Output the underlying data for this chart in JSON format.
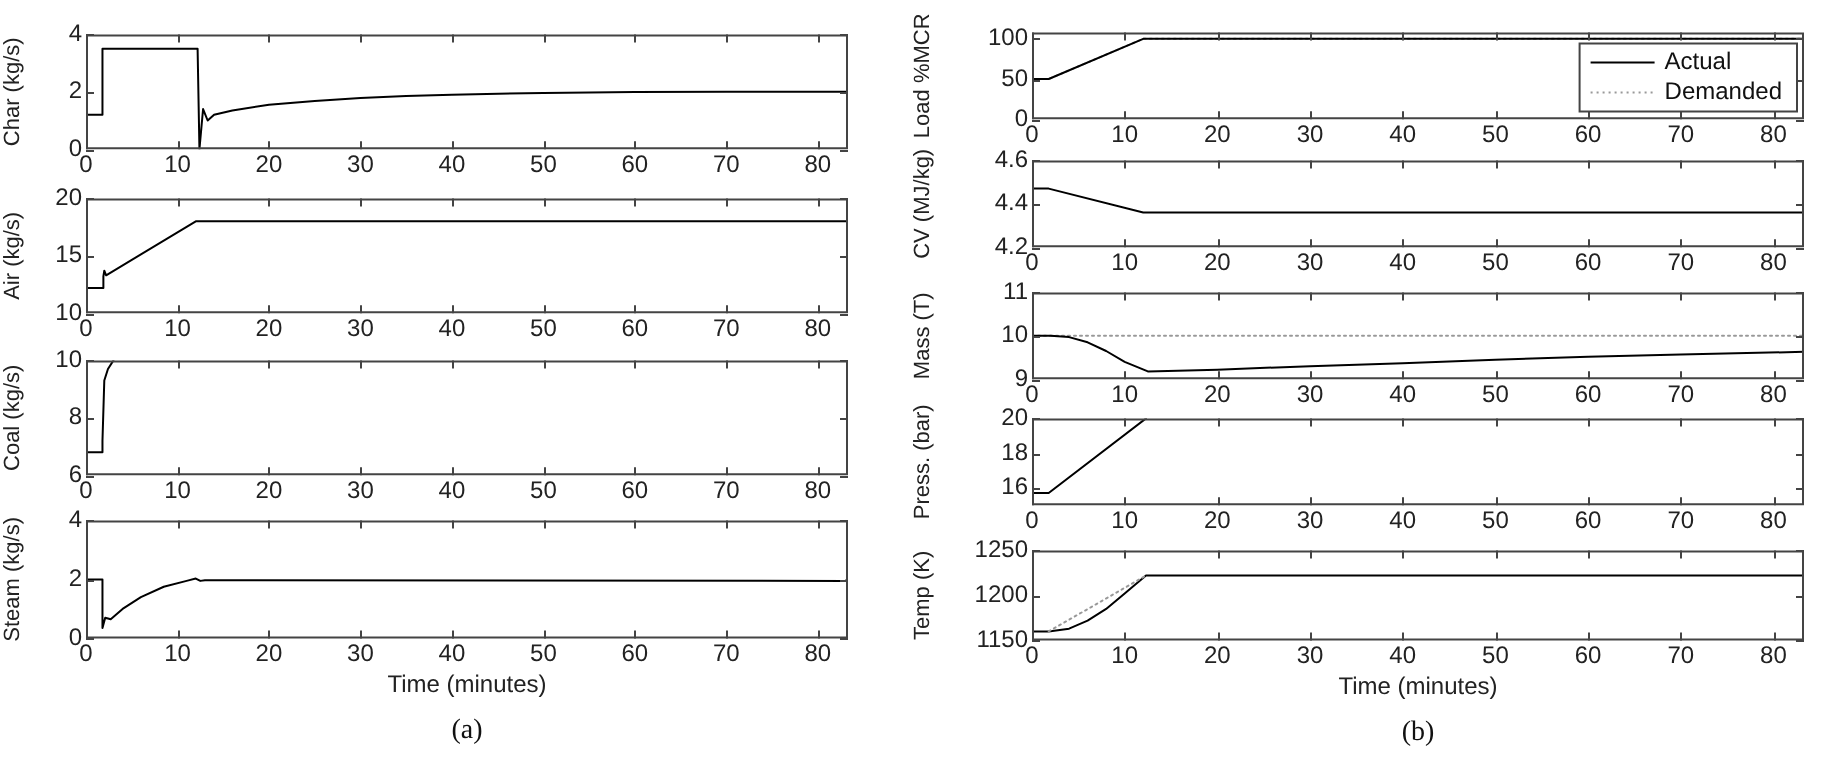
{
  "chart_data": [
    {
      "type": "line",
      "ylabel": "Char (kg/s)",
      "xlim": [
        0,
        83.3
      ],
      "xticks": [
        0,
        10,
        20,
        30,
        40,
        50,
        60,
        70,
        80
      ],
      "ylim": [
        0,
        4
      ],
      "yticks": [
        0,
        2,
        4
      ],
      "marker": "none",
      "line_style": "solid",
      "series": [
        {
          "color": "#000000",
          "x": [
            0,
            1.8,
            1.8,
            12.2,
            12.4,
            12.8,
            13.3,
            14,
            16,
            20,
            25,
            30,
            35,
            40,
            50,
            60,
            70,
            83.3
          ],
          "values": [
            1.2,
            1.2,
            3.5,
            3.5,
            0,
            1.4,
            1.0,
            1.2,
            1.35,
            1.55,
            1.68,
            1.78,
            1.85,
            1.9,
            1.96,
            1.99,
            2.0,
            2.0
          ]
        }
      ]
    },
    {
      "type": "line",
      "ylabel": "Air (kg/s)",
      "xlim": [
        0,
        83.3
      ],
      "xticks": [
        0,
        10,
        20,
        30,
        40,
        50,
        60,
        70,
        80
      ],
      "ylim": [
        10,
        20
      ],
      "yticks": [
        10,
        15,
        20
      ],
      "marker": "none",
      "line_style": "solid",
      "series": [
        {
          "color": "#000000",
          "x": [
            0,
            1.8,
            1.9,
            2.0,
            2.2,
            12,
            83.3
          ],
          "values": [
            12.2,
            12.2,
            13.2,
            13.7,
            13.3,
            18,
            18
          ]
        }
      ]
    },
    {
      "type": "line",
      "ylabel": "Coal (kg/s)",
      "xlim": [
        0,
        83.3
      ],
      "xticks": [
        0,
        10,
        20,
        30,
        40,
        50,
        60,
        70,
        80
      ],
      "ylim": [
        6,
        10
      ],
      "yticks": [
        6,
        8,
        10
      ],
      "marker": "none",
      "line_style": "solid",
      "series": [
        {
          "color": "#000000",
          "x": [
            0,
            1.8,
            1.8,
            2.0,
            2.4,
            3.0
          ],
          "values": [
            6.8,
            6.8,
            7.2,
            9.3,
            9.7,
            10
          ]
        }
      ]
    },
    {
      "type": "line",
      "ylabel": "Steam (kg/s)",
      "xlabel": "Time (minutes)",
      "annotations": [
        "(a)"
      ],
      "xlim": [
        0,
        83.3
      ],
      "xticks": [
        0,
        10,
        20,
        30,
        40,
        50,
        60,
        70,
        80
      ],
      "ylim": [
        0,
        4
      ],
      "yticks": [
        0,
        2,
        4
      ],
      "marker": "none",
      "line_style": "solid",
      "series": [
        {
          "color": "#000000",
          "x": [
            0,
            1.8,
            1.8,
            2.1,
            2.7,
            4,
            6,
            8.5,
            11,
            12,
            12.5,
            13,
            83,
            83.3
          ],
          "values": [
            2.0,
            2.0,
            0.35,
            0.7,
            0.65,
            1.0,
            1.4,
            1.75,
            1.95,
            2.03,
            1.95,
            1.97,
            1.95,
            2.0
          ]
        }
      ]
    },
    {
      "type": "line",
      "ylabel": "Load %MCR",
      "legend": "top right",
      "xlim": [
        0,
        83.3
      ],
      "xticks": [
        0,
        10,
        20,
        30,
        40,
        50,
        60,
        70,
        80
      ],
      "ylim": [
        0,
        108
      ],
      "yticks": [
        0,
        50,
        100
      ],
      "marker": "none",
      "series": [
        {
          "name": "Actual",
          "color": "#000000",
          "line_style": "solid",
          "x": [
            0,
            1.8,
            12,
            83.3
          ],
          "values": [
            50,
            50,
            100,
            100
          ]
        },
        {
          "name": "Demanded",
          "color": "#999999",
          "line_style": "dotted",
          "x": [
            0,
            1.8,
            12,
            83.3
          ],
          "values": [
            50,
            50,
            100,
            100
          ]
        }
      ]
    },
    {
      "type": "line",
      "ylabel": "CV (MJ/kg)",
      "xlim": [
        0,
        83.3
      ],
      "xticks": [
        0,
        10,
        20,
        30,
        40,
        50,
        60,
        70,
        80
      ],
      "ylim": [
        4.2,
        4.6
      ],
      "yticks": [
        4.2,
        4.4,
        4.6
      ],
      "marker": "none",
      "series": [
        {
          "color": "#000000",
          "line_style": "solid",
          "x": [
            0,
            1.8,
            12,
            83.3
          ],
          "values": [
            4.47,
            4.47,
            4.36,
            4.36
          ]
        }
      ]
    },
    {
      "type": "line",
      "ylabel": "Mass (T)",
      "xlim": [
        0,
        83.3
      ],
      "xticks": [
        0,
        10,
        20,
        30,
        40,
        50,
        60,
        70,
        80
      ],
      "ylim": [
        9,
        11
      ],
      "yticks": [
        9,
        10,
        11
      ],
      "marker": "none",
      "series": [
        {
          "color": "#000000",
          "line_style": "solid",
          "x": [
            0,
            2,
            4,
            6,
            8,
            10,
            12.5,
            20,
            30,
            40,
            50,
            60,
            70,
            83.3
          ],
          "values": [
            10,
            10,
            9.97,
            9.85,
            9.65,
            9.4,
            9.18,
            9.22,
            9.3,
            9.37,
            9.45,
            9.52,
            9.57,
            9.63
          ]
        },
        {
          "color": "#999999",
          "line_style": "dotted",
          "x": [
            0,
            83.3
          ],
          "values": [
            10,
            10
          ]
        }
      ]
    },
    {
      "type": "line",
      "ylabel": "Press. (bar)",
      "xlim": [
        0,
        83.3
      ],
      "xticks": [
        0,
        10,
        20,
        30,
        40,
        50,
        60,
        70,
        80
      ],
      "ylim": [
        15,
        20
      ],
      "yticks": [
        16,
        18,
        20
      ],
      "marker": "none",
      "series": [
        {
          "color": "#000000",
          "line_style": "solid",
          "x": [
            0,
            1.8,
            12.3
          ],
          "values": [
            15.7,
            15.7,
            20
          ]
        }
      ]
    },
    {
      "type": "line",
      "ylabel": "Temp (K)",
      "xlabel": "Time (minutes)",
      "annotations": [
        "(b)"
      ],
      "xlim": [
        0,
        83.3
      ],
      "xticks": [
        0,
        10,
        20,
        30,
        40,
        50,
        60,
        70,
        80
      ],
      "ylim": [
        1150,
        1250
      ],
      "yticks": [
        1150,
        1200,
        1250
      ],
      "marker": "none",
      "series": [
        {
          "color": "#999999",
          "line_style": "dotted",
          "x": [
            1.8,
            12.3
          ],
          "values": [
            1160,
            1222
          ]
        },
        {
          "color": "#000000",
          "line_style": "solid",
          "x": [
            0,
            1.8,
            4,
            6,
            8,
            10,
            12.3,
            83.3
          ],
          "values": [
            1160,
            1160,
            1163,
            1172,
            1185,
            1202,
            1222,
            1222
          ]
        }
      ]
    }
  ]
}
